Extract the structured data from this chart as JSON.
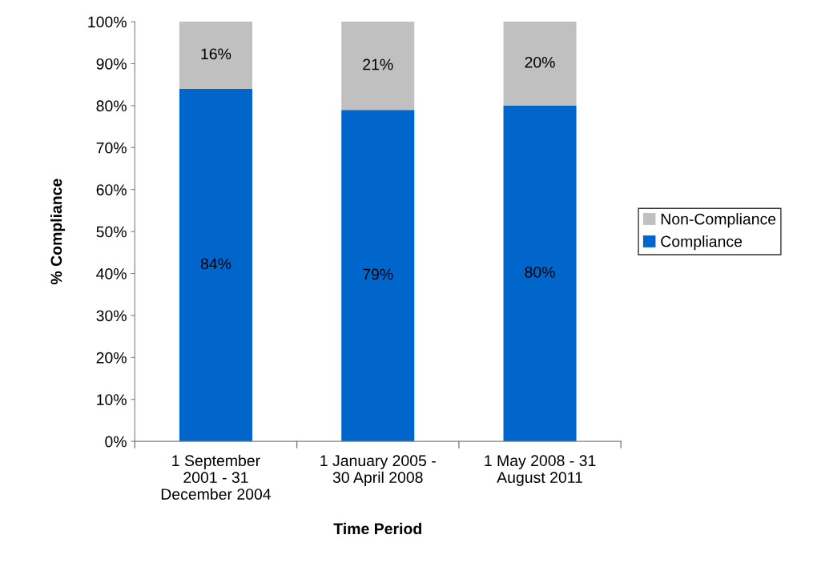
{
  "chart_data": {
    "type": "bar",
    "stacked": true,
    "xlabel": "Time Period",
    "ylabel": "% Compliance",
    "categories": [
      "1 September\n2001 - 31\nDecember 2004",
      "1 January 2005 -\n30 April 2008",
      "1 May 2008 - 31\nAugust 2011"
    ],
    "series": [
      {
        "name": "Compliance",
        "color": "#0066cc",
        "values": [
          84,
          79,
          80
        ],
        "value_labels": [
          "84%",
          "79%",
          "80%"
        ]
      },
      {
        "name": "Non-Compliance",
        "color": "#c0c0c0",
        "values": [
          16,
          21,
          20
        ],
        "value_labels": [
          "16%",
          "21%",
          "20%"
        ]
      }
    ],
    "ylim": [
      0,
      100
    ],
    "yticks": [
      {
        "value": 0,
        "label": "0%"
      },
      {
        "value": 10,
        "label": "10%"
      },
      {
        "value": 20,
        "label": "20%"
      },
      {
        "value": 30,
        "label": "30%"
      },
      {
        "value": 40,
        "label": "40%"
      },
      {
        "value": 50,
        "label": "50%"
      },
      {
        "value": 60,
        "label": "60%"
      },
      {
        "value": 70,
        "label": "70%"
      },
      {
        "value": 80,
        "label": "80%"
      },
      {
        "value": 90,
        "label": "90%"
      },
      {
        "value": 100,
        "label": "100%"
      }
    ],
    "grid": false,
    "legend": "right"
  }
}
